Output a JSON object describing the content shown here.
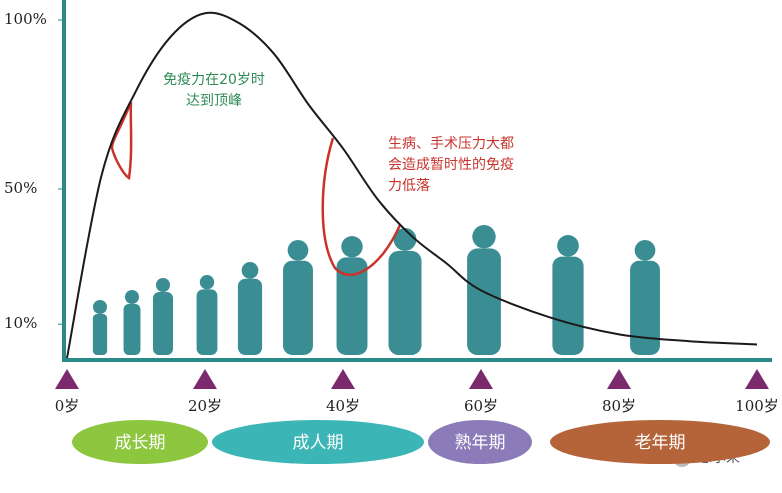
{
  "chart_data": {
    "type": "line",
    "x": [
      0,
      5,
      10,
      15,
      20,
      25,
      30,
      35,
      40,
      45,
      50,
      55,
      60,
      70,
      80,
      90,
      100
    ],
    "values": [
      0,
      54,
      79,
      95,
      102,
      99,
      90,
      75,
      62,
      47,
      36,
      28,
      20,
      12,
      7,
      5,
      4
    ],
    "color": "#1a1a1a",
    "xlim": [
      0,
      100
    ],
    "xticks": [
      {
        "value": 0,
        "label": "0岁"
      },
      {
        "value": 20,
        "label": "20岁"
      },
      {
        "value": 40,
        "label": "40岁"
      },
      {
        "value": 60,
        "label": "60岁"
      },
      {
        "value": 80,
        "label": "80岁"
      },
      {
        "value": 100,
        "label": "100岁"
      }
    ],
    "ylim": [
      0,
      100
    ],
    "yticks": [
      {
        "value": 100,
        "label": "100%"
      },
      {
        "value": 50,
        "label": "50%"
      },
      {
        "value": 10,
        "label": "10%"
      }
    ],
    "annotations": [
      [
        "免疫力在20岁时",
        "达到顶峰"
      ],
      [
        "生病、手术压力大都",
        "会造成暂时性的免疫",
        "力低落"
      ]
    ],
    "stages": [
      "成长期",
      "成人期",
      "熟年期",
      "老年期"
    ]
  },
  "watermark": "思尔来"
}
